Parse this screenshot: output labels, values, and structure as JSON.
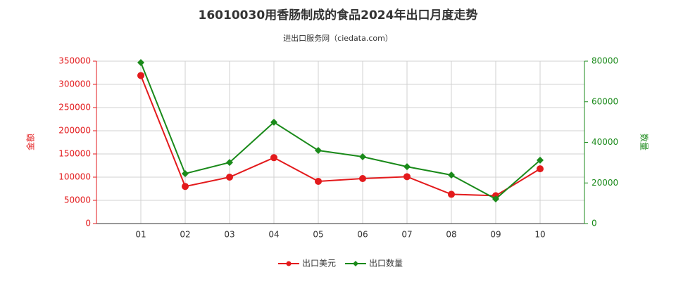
{
  "chart_data": {
    "type": "line",
    "title": "16010030用香肠制成的食品2024年出口月度走势",
    "subtitle": "进出口服务网（ciedata.com）",
    "ylabel": "金额",
    "y2label": "数量",
    "categories": [
      "01",
      "02",
      "03",
      "04",
      "05",
      "06",
      "07",
      "08",
      "09",
      "10"
    ],
    "series": [
      {
        "name": "出口美元",
        "color": "#e31a1c",
        "values": [
          319000,
          80000,
          100000,
          142000,
          91000,
          97000,
          101000,
          63000,
          60000,
          118000
        ]
      },
      {
        "name": "出口数量",
        "color": "#1a8a1a",
        "axis": "y2",
        "values": [
          79300,
          24600,
          30100,
          49900,
          36000,
          32900,
          28000,
          23900,
          12100,
          31200
        ]
      }
    ],
    "ylim": [
      0,
      350000
    ],
    "yticks": [
      0,
      50000,
      100000,
      150000,
      200000,
      250000,
      300000,
      350000
    ],
    "y2lim": [
      0,
      80000
    ],
    "y2ticks": [
      0,
      20000,
      40000,
      60000,
      80000
    ],
    "grid": true,
    "legend": "bottom"
  }
}
